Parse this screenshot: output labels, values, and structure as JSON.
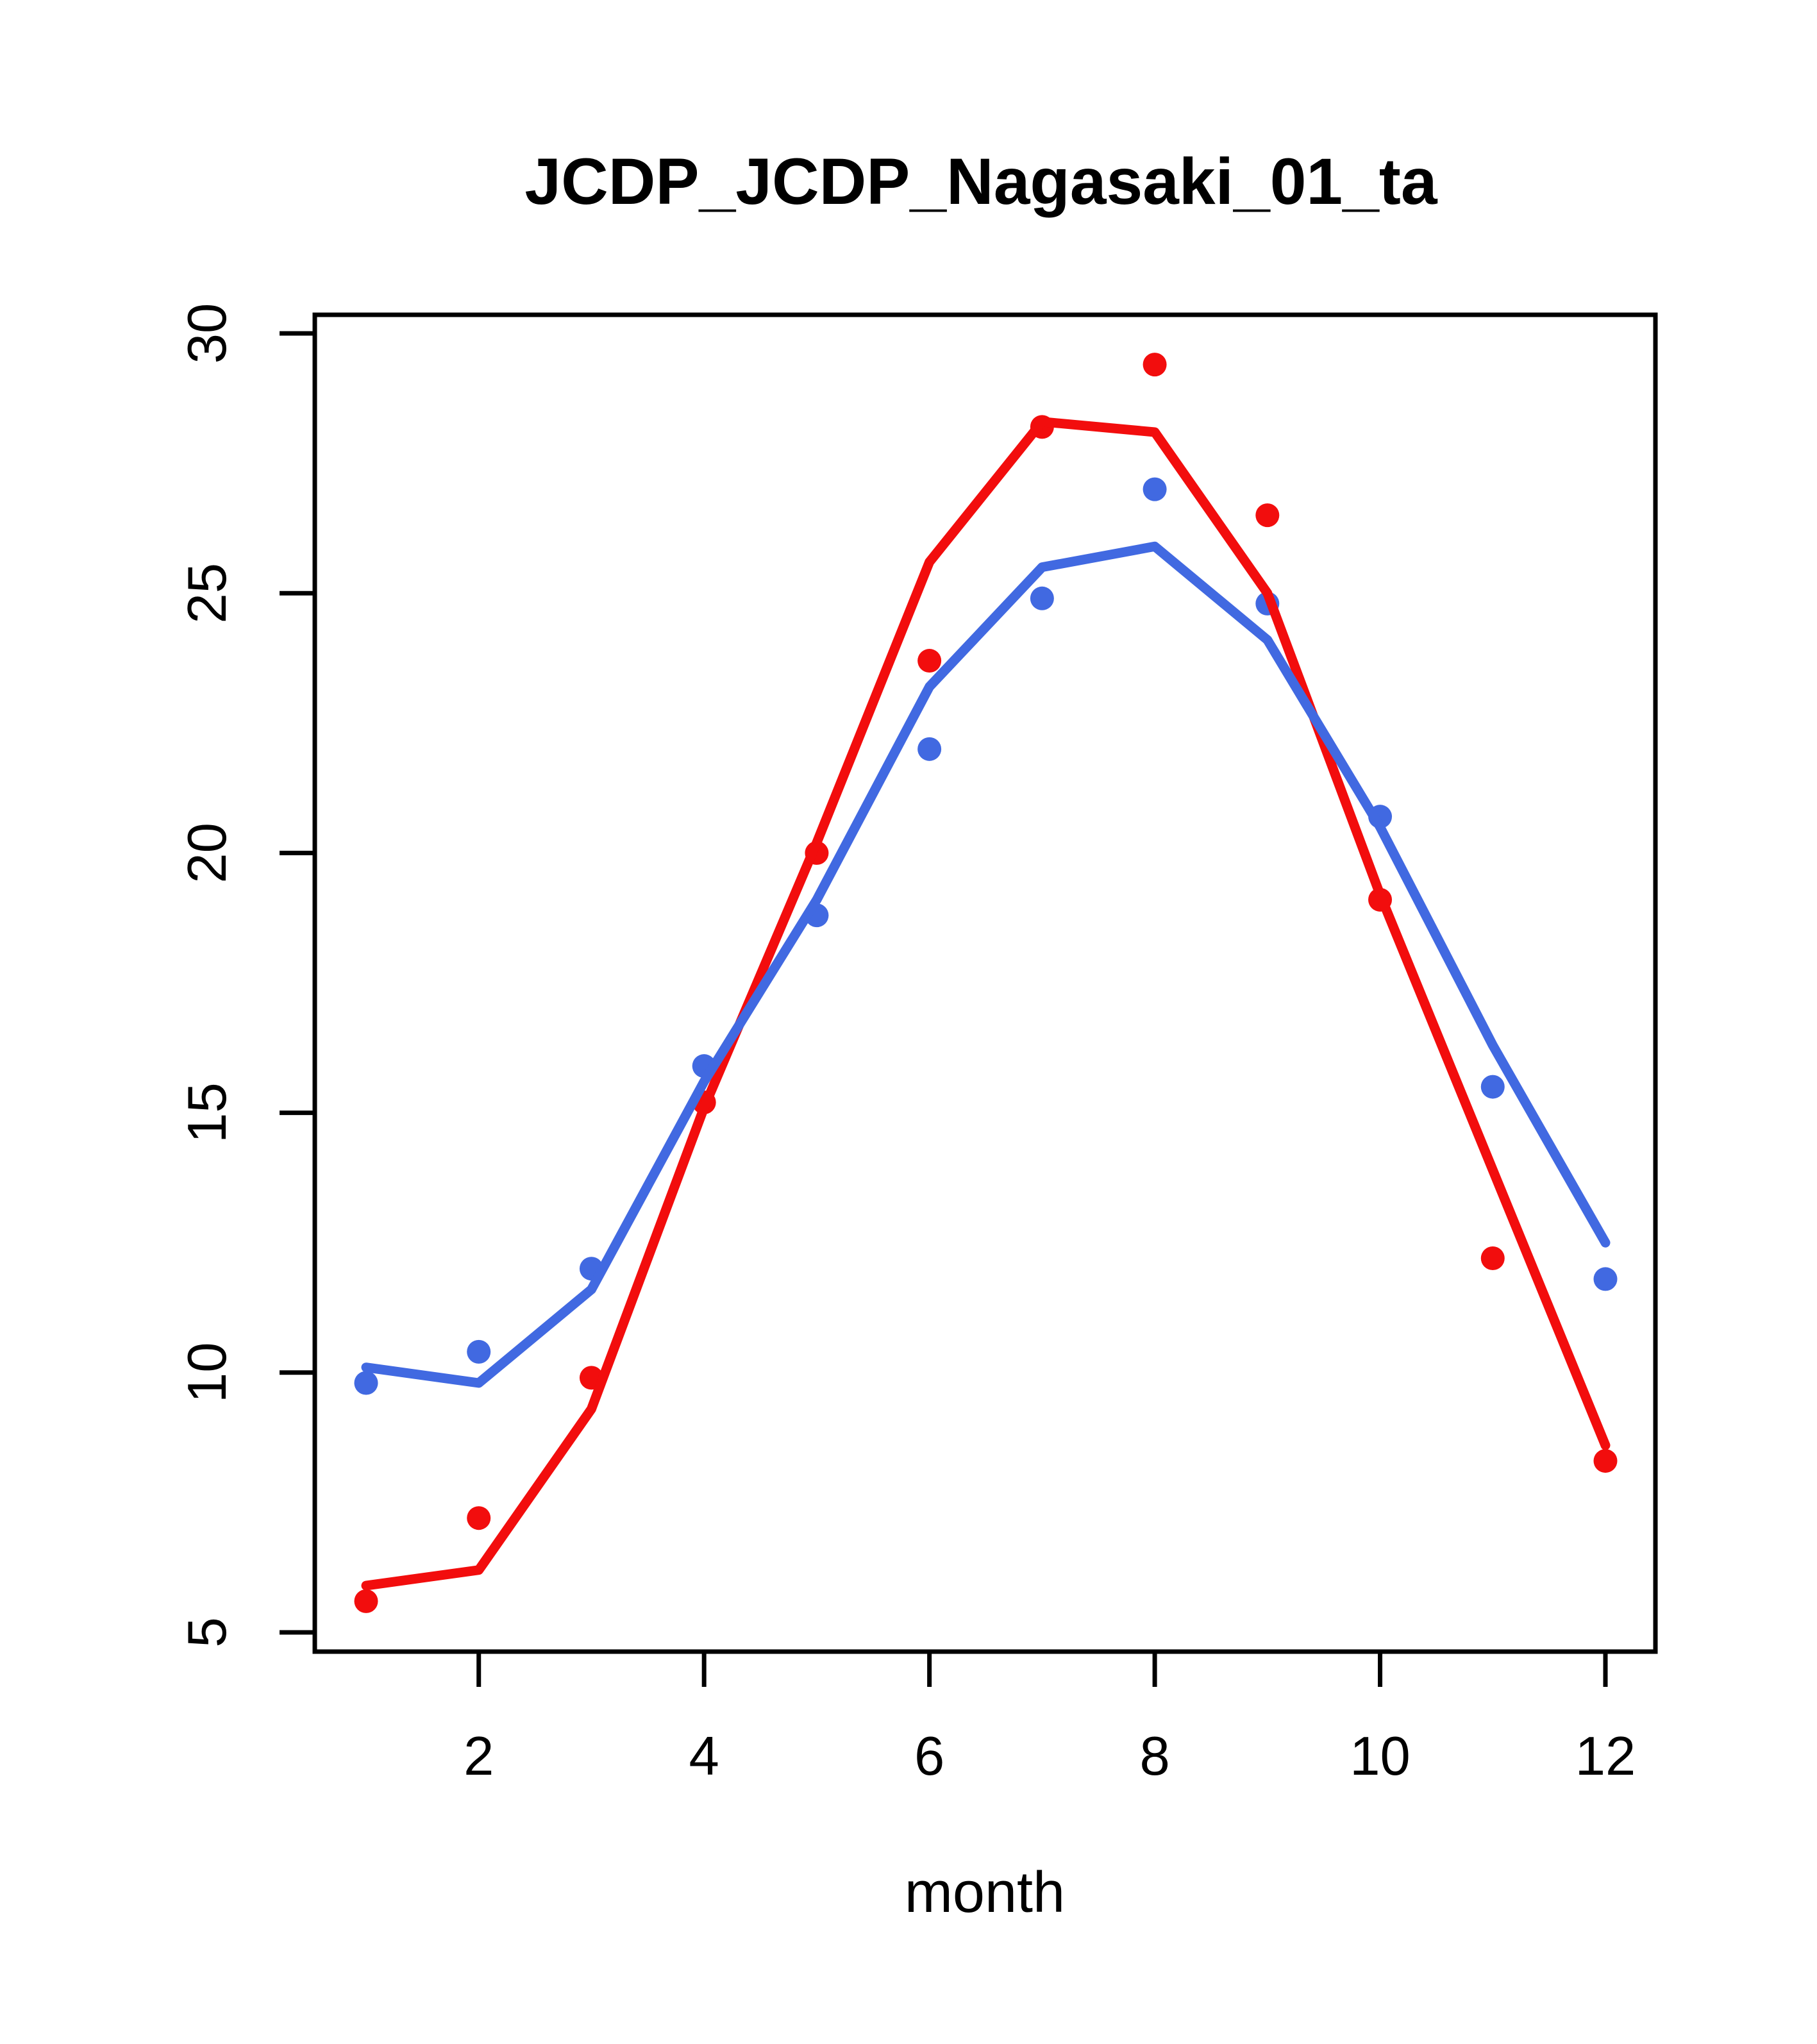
{
  "title": "JCDP_JCDP_Nagasaki_01_ta",
  "x_axis_label": "month",
  "chart_data": {
    "type": "line",
    "title": "JCDP_JCDP_Nagasaki_01_ta",
    "xlabel": "month",
    "ylabel": "",
    "x": [
      1,
      2,
      3,
      4,
      5,
      6,
      7,
      8,
      9,
      10,
      11,
      12
    ],
    "x_tick_labels": [
      "2",
      "4",
      "6",
      "8",
      "10",
      "12"
    ],
    "x_tick_values": [
      2,
      4,
      6,
      8,
      10,
      12
    ],
    "y_tick_labels": [
      "5",
      "10",
      "15",
      "20",
      "25",
      "30"
    ],
    "y_tick_values": [
      5,
      10,
      15,
      20,
      25,
      30
    ],
    "xlim": [
      0.56,
      12.44
    ],
    "ylim": [
      4.6,
      30.4
    ],
    "grid": false,
    "legend_position": "none",
    "background_color": "#ffffff",
    "axis_color": "#000000",
    "series": [
      {
        "name": "red-observed-points",
        "style": "points",
        "color": "#f20d0d",
        "values": [
          5.6,
          7.2,
          9.9,
          15.2,
          20.0,
          23.7,
          28.2,
          29.4,
          26.5,
          19.1,
          12.2,
          8.3
        ]
      },
      {
        "name": "blue-observed-points",
        "style": "points",
        "color": "#4169e1",
        "values": [
          9.8,
          10.4,
          12.0,
          15.9,
          18.8,
          22.0,
          24.9,
          27.0,
          24.8,
          20.7,
          15.5,
          11.8
        ]
      },
      {
        "name": "red-fitted-line",
        "style": "line",
        "color": "#f20d0d",
        "values": [
          5.9,
          6.2,
          9.3,
          15.1,
          20.2,
          25.6,
          28.3,
          28.1,
          25.0,
          19.2,
          13.9,
          8.6
        ]
      },
      {
        "name": "blue-fitted-line",
        "style": "line",
        "color": "#4169e1",
        "values": [
          10.1,
          9.8,
          11.6,
          15.6,
          19.1,
          23.2,
          25.5,
          25.9,
          24.1,
          20.5,
          16.3,
          12.5
        ]
      }
    ]
  }
}
